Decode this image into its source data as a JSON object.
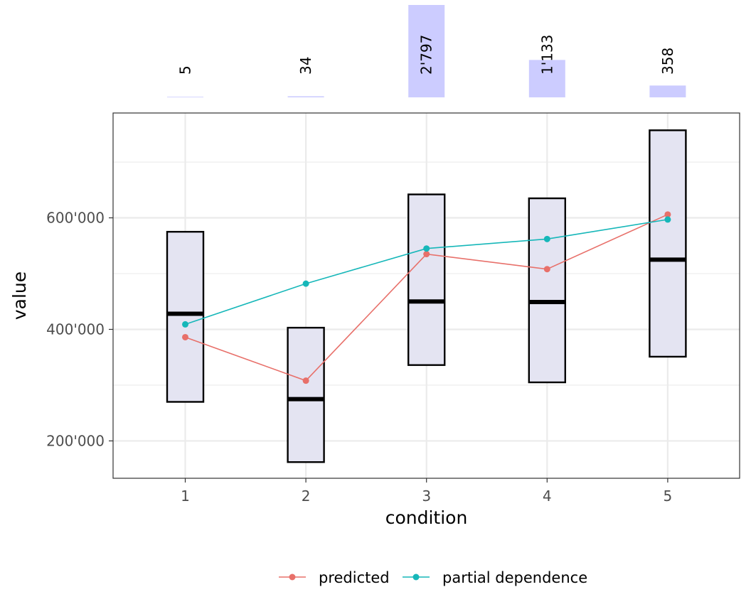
{
  "chart_data": {
    "type": "boxplot",
    "xlabel": "condition",
    "ylabel": "value",
    "categories": [
      "1",
      "2",
      "3",
      "4",
      "5"
    ],
    "ylim": [
      133000,
      788000
    ],
    "y_ticks": [
      200000,
      400000,
      600000
    ],
    "y_tick_labels": [
      "200'000",
      "400'000",
      "600'000"
    ],
    "grid": true,
    "boxes": [
      {
        "category": "1",
        "q1": 270000,
        "median": 428000,
        "q3": 575000
      },
      {
        "category": "2",
        "q1": 162000,
        "median": 275000,
        "q3": 403000
      },
      {
        "category": "3",
        "q1": 336000,
        "median": 450000,
        "q3": 642000
      },
      {
        "category": "4",
        "q1": 305000,
        "median": 449000,
        "q3": 635000
      },
      {
        "category": "5",
        "q1": 351000,
        "median": 525000,
        "q3": 757000
      }
    ],
    "series": [
      {
        "name": "predicted",
        "values": [
          386000,
          308000,
          535000,
          508000,
          606000
        ]
      },
      {
        "name": "partial dependence",
        "values": [
          409000,
          482000,
          545000,
          562000,
          597000
        ]
      }
    ],
    "counts": {
      "values": [
        5,
        34,
        2797,
        1133,
        358
      ],
      "labels": [
        "5",
        "34",
        "2'797",
        "1'133",
        "358"
      ]
    },
    "legend_position": "bottom",
    "colors": {
      "predicted": "#e8706a",
      "partial dependence": "#16b7b9",
      "box_fill": "#e4e4f2",
      "count_bar": "#ccccff",
      "grid": "#ebebeb",
      "panel_border": "#333333"
    }
  }
}
